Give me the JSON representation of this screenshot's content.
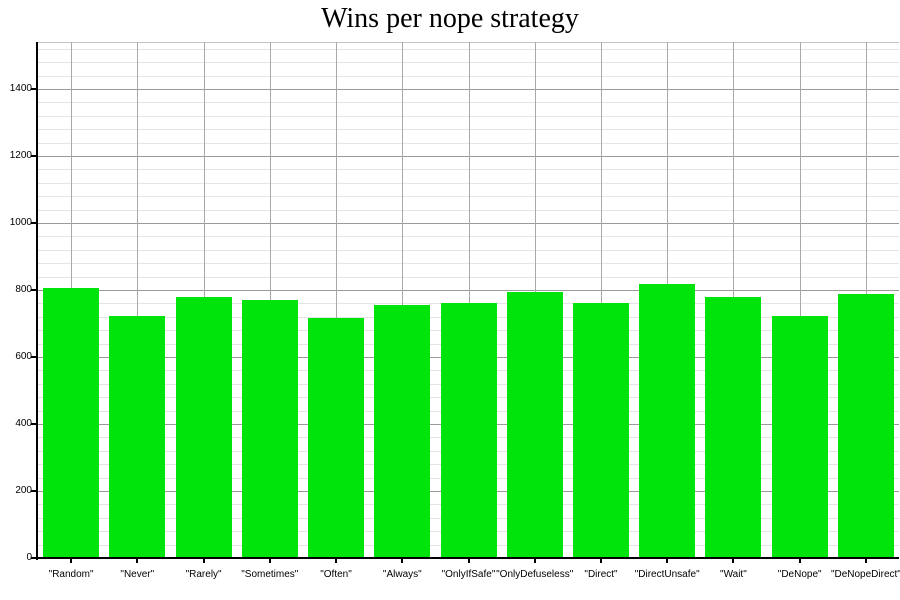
{
  "chart_data": {
    "type": "bar",
    "title": "Wins per nope strategy",
    "categories": [
      "\"Random\"",
      "\"Never\"",
      "\"Rarely\"",
      "\"Sometimes\"",
      "\"Often\"",
      "\"Always\"",
      "\"OnlyIfSafe\"",
      "\"OnlyDefuseless\"",
      "\"Direct\"",
      "\"DirectUnsafe\"",
      "\"Wait\"",
      "\"DeNope\"",
      "\"DeNopeDirect\""
    ],
    "values": [
      807,
      721,
      780,
      770,
      716,
      755,
      762,
      795,
      761,
      819,
      780,
      723,
      789
    ],
    "xlabel": "",
    "ylabel": "",
    "ylim": [
      0,
      1540
    ],
    "yticks": [
      0,
      200,
      400,
      600,
      800,
      1000,
      1200,
      1400
    ],
    "minor_grid_step": 40,
    "major_grid_step": 200,
    "grid": "on",
    "legend": "none",
    "colors": {
      "bar": "#00E40C",
      "minor_grid": "#e4e4e4",
      "major_grid": "#9a9a9a",
      "vertical_grid": "#a8a8a8",
      "plot_border": "#c4c4c4",
      "axis": "#000000",
      "background": "#ffffff",
      "text": "#000000"
    }
  }
}
